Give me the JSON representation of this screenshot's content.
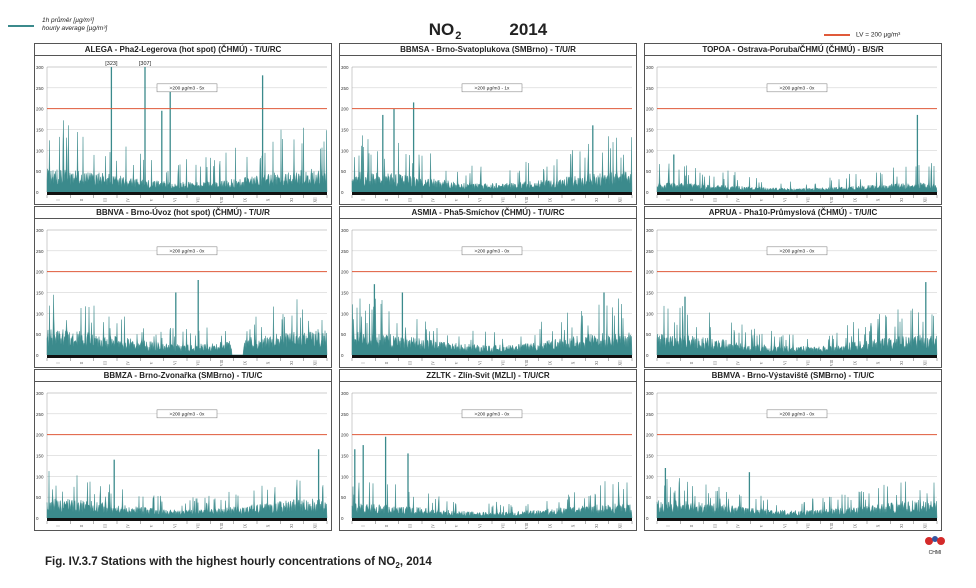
{
  "header": {
    "title_main": "NO",
    "title_sub": "2",
    "title_year": "2014",
    "legend_left_cz": "1h průměr [µg/m³]",
    "legend_left_en": "hourly average [µg/m³]",
    "legend_right": "LV = 200 µg/m³"
  },
  "caption": {
    "prefix": "Fig. IV.3.7  Stations with the highest hourly concentrations of NO",
    "sub": "2",
    "suffix": ", 2014"
  },
  "logo": {
    "label": "CHMI"
  },
  "colors": {
    "series": "#3b8a8c",
    "limit": "#e05a3a",
    "grid": "#c8c8c8"
  },
  "chart_data": [
    {
      "type": "area",
      "title": "ALEGA - Pha2-Legerova (hot spot) (ČHMÚ) - T/U/RC",
      "ylim": [
        0,
        300
      ],
      "yticks": [
        0,
        50,
        100,
        150,
        200,
        250,
        300
      ],
      "xticks": [
        "I",
        "II",
        "III",
        "IV",
        "V",
        "VI",
        "VII",
        "VIII",
        "IX",
        "X",
        "XI",
        "XII"
      ],
      "limit_value": 200,
      "exceedances": ">200 µg/m3 - 5x",
      "annotations": [
        "[323]",
        "[307]"
      ],
      "baseline": 45,
      "max_typical": 175,
      "spikes": [
        [
          0.23,
          300
        ],
        [
          0.35,
          300
        ],
        [
          0.44,
          240
        ],
        [
          0.77,
          280
        ],
        [
          0.41,
          195
        ]
      ],
      "gaps": []
    },
    {
      "type": "area",
      "title": "BBMSA - Brno-Svatoplukova (SMBrno) - T/U/R",
      "ylim": [
        0,
        300
      ],
      "yticks": [
        0,
        50,
        100,
        150,
        200,
        250,
        300
      ],
      "xticks": [
        "I",
        "II",
        "III",
        "IV",
        "V",
        "VI",
        "VII",
        "VIII",
        "IX",
        "X",
        "XI",
        "XII"
      ],
      "limit_value": 200,
      "exceedances": ">200 µg/m3 - 1x",
      "annotations": [],
      "baseline": 40,
      "max_typical": 140,
      "spikes": [
        [
          0.11,
          185
        ],
        [
          0.15,
          200
        ],
        [
          0.22,
          215
        ],
        [
          0.86,
          160
        ]
      ],
      "gaps": []
    },
    {
      "type": "area",
      "title": "TOPOA - Ostrava-Poruba/ČHMÚ (ČHMÚ) - B/S/R",
      "ylim": [
        0,
        300
      ],
      "yticks": [
        0,
        50,
        100,
        150,
        200,
        250,
        300
      ],
      "xticks": [
        "I",
        "II",
        "III",
        "IV",
        "V",
        "VI",
        "VII",
        "VIII",
        "IX",
        "X",
        "XI",
        "XII"
      ],
      "limit_value": 200,
      "exceedances": ">200 µg/m3 - 0x",
      "annotations": [],
      "baseline": 18,
      "max_typical": 70,
      "spikes": [
        [
          0.93,
          185
        ],
        [
          0.06,
          90
        ]
      ],
      "gaps": []
    },
    {
      "type": "area",
      "title": "BBNVA - Brno-Úvoz (hot spot) (ČHMÚ) - T/U/R",
      "ylim": [
        0,
        300
      ],
      "yticks": [
        0,
        50,
        100,
        150,
        200,
        250,
        300
      ],
      "xticks": [
        "I",
        "II",
        "III",
        "IV",
        "V",
        "VI",
        "VII",
        "VIII",
        "IX",
        "X",
        "XI",
        "XII"
      ],
      "limit_value": 200,
      "exceedances": ">200 µg/m3 - 0x",
      "annotations": [],
      "baseline": 50,
      "max_typical": 140,
      "spikes": [
        [
          0.54,
          180
        ],
        [
          0.46,
          150
        ]
      ],
      "gaps": [
        [
          0.66,
          0.7
        ]
      ]
    },
    {
      "type": "area",
      "title": "ASMIA - Pha5-Smíchov (ČHMÚ) - T/U/RC",
      "ylim": [
        0,
        300
      ],
      "yticks": [
        0,
        50,
        100,
        150,
        200,
        250,
        300
      ],
      "xticks": [
        "I",
        "II",
        "III",
        "IV",
        "V",
        "VI",
        "VII",
        "VIII",
        "IX",
        "X",
        "XI",
        "XII"
      ],
      "limit_value": 200,
      "exceedances": ">200 µg/m3 - 0x",
      "annotations": [],
      "baseline": 45,
      "max_typical": 135,
      "spikes": [
        [
          0.08,
          170
        ],
        [
          0.18,
          150
        ],
        [
          0.9,
          150
        ]
      ],
      "gaps": []
    },
    {
      "type": "area",
      "title": "APRUA - Pha10-Průmyslová (ČHMÚ) - T/U/IC",
      "ylim": [
        0,
        300
      ],
      "yticks": [
        0,
        50,
        100,
        150,
        200,
        250,
        300
      ],
      "xticks": [
        "I",
        "II",
        "III",
        "IV",
        "V",
        "VI",
        "VII",
        "VIII",
        "IX",
        "X",
        "XI",
        "XII"
      ],
      "limit_value": 200,
      "exceedances": ">200 µg/m3 - 0x",
      "annotations": [],
      "baseline": 40,
      "max_typical": 120,
      "spikes": [
        [
          0.96,
          175
        ],
        [
          0.1,
          140
        ]
      ],
      "gaps": []
    },
    {
      "type": "area",
      "title": "BBMZA - Brno-Zvonařka (SMBrno) - T/U/C",
      "ylim": [
        0,
        300
      ],
      "yticks": [
        0,
        50,
        100,
        150,
        200,
        250,
        300
      ],
      "xticks": [
        "I",
        "II",
        "III",
        "IV",
        "V",
        "VI",
        "VII",
        "VIII",
        "IX",
        "X",
        "XI",
        "XII"
      ],
      "limit_value": 200,
      "exceedances": ">200 µg/m3 - 0x",
      "annotations": [],
      "baseline": 38,
      "max_typical": 110,
      "spikes": [
        [
          0.24,
          140
        ],
        [
          0.97,
          165
        ]
      ],
      "gaps": []
    },
    {
      "type": "area",
      "title": "ZZLTK - Zlín-Svit (MZLI) - T/U/CR",
      "ylim": [
        0,
        300
      ],
      "yticks": [
        0,
        50,
        100,
        150,
        200,
        250,
        300
      ],
      "xticks": [
        "I",
        "II",
        "III",
        "IV",
        "V",
        "VI",
        "VII",
        "VIII",
        "IX",
        "X",
        "XI",
        "XII"
      ],
      "limit_value": 200,
      "exceedances": ">200 µg/m3 - 0x",
      "annotations": [],
      "baseline": 28,
      "max_typical": 90,
      "spikes": [
        [
          0.01,
          165
        ],
        [
          0.04,
          175
        ],
        [
          0.12,
          195
        ],
        [
          0.2,
          155
        ]
      ],
      "gaps": []
    },
    {
      "type": "area",
      "title": "BBMVA - Brno-Výstaviště (SMBrno) - T/U/C",
      "ylim": [
        0,
        300
      ],
      "yticks": [
        0,
        50,
        100,
        150,
        200,
        250,
        300
      ],
      "xticks": [
        "I",
        "II",
        "III",
        "IV",
        "V",
        "VI",
        "VII",
        "VIII",
        "IX",
        "X",
        "XI",
        "XII"
      ],
      "limit_value": 200,
      "exceedances": ">200 µg/m3 - 0x",
      "annotations": [],
      "baseline": 35,
      "max_typical": 100,
      "spikes": [
        [
          0.03,
          120
        ],
        [
          0.33,
          110
        ]
      ],
      "gaps": []
    }
  ]
}
